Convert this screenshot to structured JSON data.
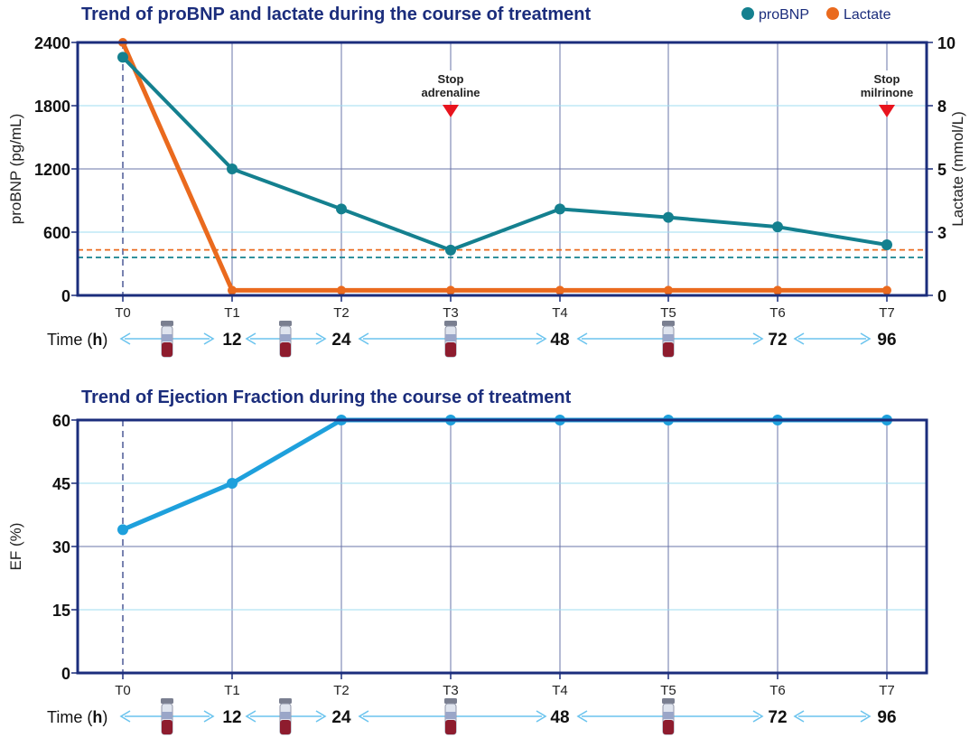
{
  "chart_data": [
    {
      "type": "line",
      "title": "Trend of proBNP and lactate during the course of treatment",
      "categories": [
        "T0",
        "T1",
        "T2",
        "T3",
        "T4",
        "T5",
        "T6",
        "T7"
      ],
      "ylabel_left": "proBNP (pg/mL)",
      "ylabel_right": "Lactate (mmol/L)",
      "yticks_left": [
        "0",
        "600",
        "1200",
        "1800",
        "2400"
      ],
      "yticks_right": [
        "0",
        "3",
        "5",
        "8",
        "10"
      ],
      "ylim_left": [
        0,
        2400
      ],
      "ylim_right": [
        0,
        10
      ],
      "legend": {
        "position": "top-right",
        "entries": [
          "proBNP",
          "Lactate"
        ]
      },
      "series": [
        {
          "name": "proBNP",
          "axis": "left",
          "color": "#14808f",
          "values": [
            2260,
            1200,
            820,
            430,
            820,
            740,
            650,
            480
          ]
        },
        {
          "name": "Lactate",
          "axis": "right",
          "color": "#ea6a1e",
          "values": [
            10,
            0.2,
            0.2,
            0.2,
            0.2,
            0.2,
            0.2,
            0.2
          ]
        }
      ],
      "reference_lines": [
        {
          "series": "Lactate",
          "value": 1.8,
          "color": "#ea6a1e"
        },
        {
          "series": "proBNP",
          "value": 360,
          "color": "#14808f"
        }
      ],
      "annotations": [
        {
          "category": "T3",
          "line1": "Stop",
          "line2": "adrenaline"
        },
        {
          "category": "T7",
          "line1": "Stop",
          "line2": "milrinone"
        }
      ]
    },
    {
      "type": "line",
      "title": "Trend of Ejection Fraction during the course of treatment",
      "categories": [
        "T0",
        "T1",
        "T2",
        "T3",
        "T4",
        "T5",
        "T6",
        "T7"
      ],
      "ylabel": "EF (%)",
      "yticks": [
        "0",
        "15",
        "30",
        "45",
        "60"
      ],
      "ylim": [
        0,
        60
      ],
      "series": [
        {
          "name": "EF",
          "color": "#1ea0dc",
          "values": [
            34,
            45,
            60,
            60,
            60,
            60,
            60,
            60
          ]
        }
      ]
    }
  ],
  "timeline": {
    "label_prefix": "Time (",
    "label_unit": "h",
    "label_suffix": ")",
    "hours": [
      "12",
      "24",
      "48",
      "72",
      "96"
    ]
  },
  "colors": {
    "title": "#1b2d7c",
    "axis": "#1b2d7c",
    "grid_major": "#6a74a8",
    "grid_minor": "#9fdcf0",
    "arrow": "#6cc4ee",
    "marker": "#e8141e"
  }
}
